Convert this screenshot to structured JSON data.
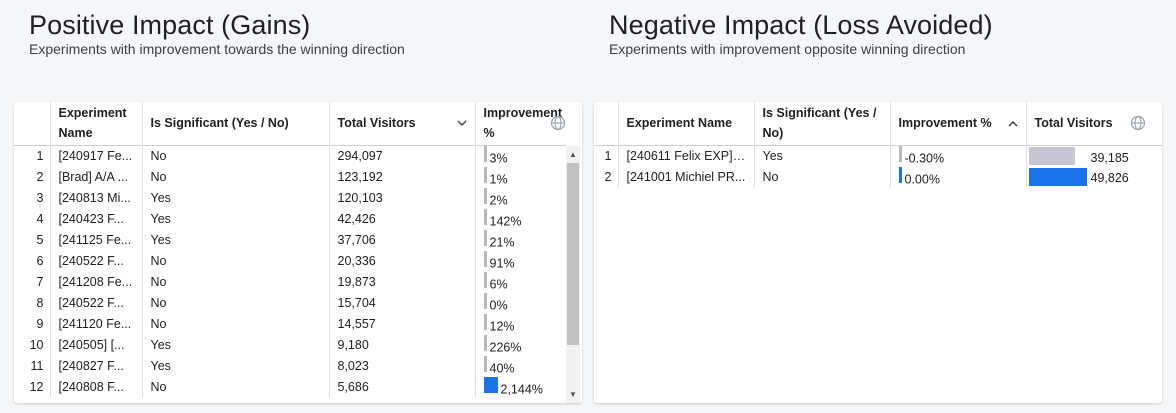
{
  "left": {
    "title": "Positive Impact (Gains)",
    "subtitle": "Experiments with improvement towards the winning direction",
    "columns": {
      "name": "Experiment Name",
      "significant": "Is Significant (Yes / No)",
      "visitors": "Total Visitors",
      "improvement": "Improvement %"
    },
    "sort_icon": "chevron-down-icon",
    "rows": [
      {
        "n": "1",
        "name": "[240917 Fe...",
        "sig": "No",
        "visitors": "294,097",
        "imp": "3%",
        "imp_value": 3
      },
      {
        "n": "2",
        "name": "[Brad] A/A ...",
        "sig": "No",
        "visitors": "123,192",
        "imp": "1%",
        "imp_value": 1
      },
      {
        "n": "3",
        "name": "[240813 Mi...",
        "sig": "Yes",
        "visitors": "120,103",
        "imp": "2%",
        "imp_value": 2
      },
      {
        "n": "4",
        "name": "[240423 F...",
        "sig": "Yes",
        "visitors": "42,426",
        "imp": "142%",
        "imp_value": 142
      },
      {
        "n": "5",
        "name": "[241125 Fe...",
        "sig": "Yes",
        "visitors": "37,706",
        "imp": "21%",
        "imp_value": 21
      },
      {
        "n": "6",
        "name": "[240522 F...",
        "sig": "No",
        "visitors": "20,336",
        "imp": "91%",
        "imp_value": 91
      },
      {
        "n": "7",
        "name": "[241208 Fe...",
        "sig": "No",
        "visitors": "19,873",
        "imp": "6%",
        "imp_value": 6
      },
      {
        "n": "8",
        "name": "[240522 F...",
        "sig": "No",
        "visitors": "15,704",
        "imp": "0%",
        "imp_value": 0
      },
      {
        "n": "9",
        "name": "[241120 Fe...",
        "sig": "No",
        "visitors": "14,557",
        "imp": "12%",
        "imp_value": 12
      },
      {
        "n": "10",
        "name": "[240505] [...",
        "sig": "Yes",
        "visitors": "9,180",
        "imp": "226%",
        "imp_value": 226
      },
      {
        "n": "11",
        "name": "[240827 F...",
        "sig": "Yes",
        "visitors": "8,023",
        "imp": "40%",
        "imp_value": 40
      },
      {
        "n": "12",
        "name": "[240808 F...",
        "sig": "No",
        "visitors": "5,686",
        "imp": "2,144%",
        "imp_value": 2144
      }
    ]
  },
  "right": {
    "title": "Negative Impact (Loss Avoided)",
    "subtitle": "Experiments with improvement opposite winning direction",
    "columns": {
      "name": "Experiment Name",
      "significant": "Is Significant (Yes / No)",
      "improvement": "Improvement %",
      "visitors": "Total Visitors"
    },
    "sort_icon": "chevron-up-icon",
    "rows": [
      {
        "n": "1",
        "name": "[240611 Felix EXP] ...",
        "sig": "Yes",
        "imp": "-0.30%",
        "imp_value": -0.3,
        "visitors": "39,185",
        "visitors_value": 39185
      },
      {
        "n": "2",
        "name": "[241001 Michiel PR...",
        "sig": "No",
        "imp": "0.00%",
        "imp_value": 0.0,
        "visitors": "49,826",
        "visitors_value": 49826
      }
    ]
  },
  "colors": {
    "bar_blue": "#1a73e8",
    "bar_gray": "#c8c6d2",
    "background": "#f5f6f8"
  },
  "icons": {
    "globe": "globe-icon",
    "scroll_up": "scroll-up-arrow-icon",
    "scroll_down": "scroll-down-arrow-icon"
  }
}
